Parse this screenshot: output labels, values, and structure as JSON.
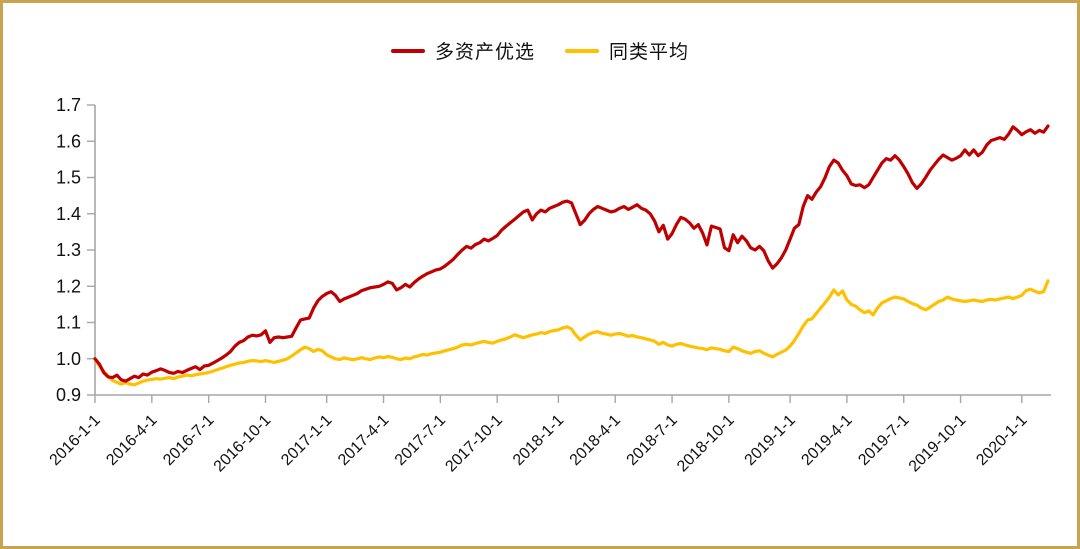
{
  "page": {
    "border_color": "#c9a350",
    "background": "#ffffff"
  },
  "legend": {
    "items": [
      {
        "label": "多资产优选",
        "color": "#c00000"
      },
      {
        "label": "同类平均",
        "color": "#ffc000"
      }
    ]
  },
  "chart_data": {
    "type": "line",
    "title": "",
    "xlabel": "",
    "ylabel": "",
    "grid": false,
    "legend_position": "top-center",
    "axis_color": "#a6a6a6",
    "text_color": "#111111",
    "ylim": [
      0.9,
      1.7
    ],
    "y_ticks": [
      0.9,
      1.0,
      1.1,
      1.2,
      1.3,
      1.4,
      1.5,
      1.6,
      1.7
    ],
    "x_tick_labels": [
      "2016-1-1",
      "2016-4-1",
      "2016-7-1",
      "2016-10-1",
      "2017-1-1",
      "2017-4-1",
      "2017-7-1",
      "2017-10-1",
      "2018-1-1",
      "2018-4-1",
      "2018-7-1",
      "2018-10-1",
      "2019-1-1",
      "2019-4-1",
      "2019-7-1",
      "2019-10-1",
      "2020-1-1"
    ],
    "x_tick_indices": [
      0,
      13,
      26,
      39,
      53,
      66,
      79,
      92,
      106,
      119,
      132,
      145,
      159,
      172,
      185,
      198,
      212
    ],
    "x_unit": "week",
    "series": [
      {
        "name": "多资产优选",
        "color": "#c00000",
        "values": [
          1.0,
          0.985,
          0.962,
          0.95,
          0.948,
          0.955,
          0.942,
          0.938,
          0.945,
          0.952,
          0.948,
          0.958,
          0.955,
          0.963,
          0.967,
          0.972,
          0.968,
          0.962,
          0.96,
          0.965,
          0.962,
          0.968,
          0.973,
          0.978,
          0.97,
          0.98,
          0.982,
          0.988,
          0.995,
          1.002,
          1.01,
          1.02,
          1.035,
          1.045,
          1.05,
          1.06,
          1.065,
          1.063,
          1.066,
          1.077,
          1.045,
          1.058,
          1.06,
          1.058,
          1.06,
          1.062,
          1.085,
          1.107,
          1.11,
          1.112,
          1.14,
          1.16,
          1.172,
          1.18,
          1.185,
          1.175,
          1.158,
          1.165,
          1.17,
          1.175,
          1.18,
          1.188,
          1.192,
          1.196,
          1.198,
          1.2,
          1.205,
          1.212,
          1.208,
          1.19,
          1.196,
          1.205,
          1.198,
          1.21,
          1.22,
          1.228,
          1.235,
          1.24,
          1.245,
          1.248,
          1.255,
          1.265,
          1.275,
          1.288,
          1.3,
          1.31,
          1.305,
          1.315,
          1.32,
          1.33,
          1.325,
          1.332,
          1.34,
          1.355,
          1.365,
          1.375,
          1.385,
          1.395,
          1.405,
          1.41,
          1.383,
          1.4,
          1.41,
          1.405,
          1.415,
          1.42,
          1.425,
          1.432,
          1.435,
          1.43,
          1.4,
          1.37,
          1.382,
          1.4,
          1.412,
          1.42,
          1.415,
          1.41,
          1.405,
          1.408,
          1.415,
          1.42,
          1.412,
          1.418,
          1.425,
          1.415,
          1.41,
          1.4,
          1.38,
          1.35,
          1.368,
          1.33,
          1.345,
          1.37,
          1.39,
          1.385,
          1.375,
          1.36,
          1.37,
          1.347,
          1.314,
          1.366,
          1.362,
          1.358,
          1.306,
          1.298,
          1.342,
          1.32,
          1.338,
          1.325,
          1.306,
          1.3,
          1.31,
          1.298,
          1.27,
          1.25,
          1.262,
          1.278,
          1.3,
          1.33,
          1.36,
          1.37,
          1.42,
          1.45,
          1.44,
          1.46,
          1.475,
          1.5,
          1.53,
          1.548,
          1.54,
          1.52,
          1.505,
          1.482,
          1.478,
          1.48,
          1.472,
          1.48,
          1.5,
          1.52,
          1.54,
          1.552,
          1.548,
          1.56,
          1.548,
          1.53,
          1.51,
          1.485,
          1.47,
          1.482,
          1.5,
          1.52,
          1.535,
          1.55,
          1.562,
          1.555,
          1.548,
          1.553,
          1.56,
          1.576,
          1.562,
          1.576,
          1.56,
          1.57,
          1.59,
          1.602,
          1.606,
          1.61,
          1.605,
          1.62,
          1.64,
          1.63,
          1.618,
          1.626,
          1.632,
          1.622,
          1.63,
          1.625,
          1.642
        ]
      },
      {
        "name": "同类平均",
        "color": "#ffc000",
        "values": [
          1.0,
          0.98,
          0.966,
          0.952,
          0.94,
          0.935,
          0.93,
          0.934,
          0.93,
          0.928,
          0.933,
          0.938,
          0.941,
          0.943,
          0.945,
          0.944,
          0.946,
          0.948,
          0.945,
          0.95,
          0.952,
          0.955,
          0.953,
          0.956,
          0.958,
          0.96,
          0.962,
          0.966,
          0.97,
          0.974,
          0.978,
          0.982,
          0.985,
          0.988,
          0.99,
          0.993,
          0.995,
          0.994,
          0.992,
          0.995,
          0.992,
          0.99,
          0.993,
          0.996,
          1.0,
          1.008,
          1.016,
          1.025,
          1.032,
          1.028,
          1.02,
          1.026,
          1.022,
          1.011,
          1.005,
          1.0,
          0.998,
          1.002,
          1.0,
          0.997,
          1.0,
          1.003,
          1.0,
          0.998,
          1.002,
          1.005,
          1.003,
          1.006,
          1.004,
          1.0,
          0.998,
          1.002,
          1.0,
          1.005,
          1.008,
          1.012,
          1.01,
          1.014,
          1.016,
          1.018,
          1.022,
          1.025,
          1.028,
          1.032,
          1.038,
          1.04,
          1.038,
          1.042,
          1.045,
          1.048,
          1.045,
          1.043,
          1.048,
          1.052,
          1.055,
          1.06,
          1.066,
          1.062,
          1.058,
          1.062,
          1.066,
          1.068,
          1.072,
          1.07,
          1.075,
          1.078,
          1.08,
          1.085,
          1.088,
          1.082,
          1.065,
          1.052,
          1.06,
          1.068,
          1.072,
          1.075,
          1.07,
          1.068,
          1.065,
          1.068,
          1.07,
          1.066,
          1.062,
          1.064,
          1.06,
          1.058,
          1.055,
          1.052,
          1.048,
          1.04,
          1.045,
          1.038,
          1.035,
          1.04,
          1.042,
          1.038,
          1.035,
          1.032,
          1.03,
          1.028,
          1.025,
          1.03,
          1.028,
          1.026,
          1.022,
          1.02,
          1.032,
          1.028,
          1.022,
          1.018,
          1.015,
          1.02,
          1.022,
          1.015,
          1.01,
          1.005,
          1.012,
          1.018,
          1.024,
          1.035,
          1.05,
          1.07,
          1.09,
          1.107,
          1.11,
          1.125,
          1.14,
          1.155,
          1.17,
          1.19,
          1.176,
          1.187,
          1.162,
          1.15,
          1.145,
          1.135,
          1.127,
          1.132,
          1.121,
          1.14,
          1.154,
          1.16,
          1.166,
          1.17,
          1.168,
          1.165,
          1.158,
          1.152,
          1.148,
          1.14,
          1.135,
          1.142,
          1.15,
          1.158,
          1.162,
          1.17,
          1.165,
          1.162,
          1.16,
          1.158,
          1.16,
          1.162,
          1.16,
          1.158,
          1.162,
          1.164,
          1.162,
          1.165,
          1.168,
          1.17,
          1.166,
          1.17,
          1.175,
          1.188,
          1.192,
          1.186,
          1.182,
          1.185,
          1.215
        ]
      }
    ]
  }
}
